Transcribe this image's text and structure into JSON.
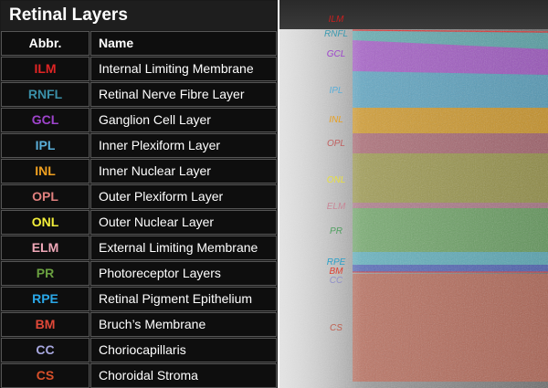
{
  "legend": {
    "title": "Retinal Layers",
    "headers": {
      "abbr": "Abbr.",
      "name": "Name"
    },
    "rows": [
      {
        "abbr": "ILM",
        "name": "Internal Limiting Membrane",
        "color": "#e02424"
      },
      {
        "abbr": "RNFL",
        "name": "Retinal Nerve Fibre Layer",
        "color": "#3a8fa8"
      },
      {
        "abbr": "GCL",
        "name": "Ganglion Cell Layer",
        "color": "#9e44cc"
      },
      {
        "abbr": "IPL",
        "name": "Inner Plexiform Layer",
        "color": "#5aaed8"
      },
      {
        "abbr": "INL",
        "name": "Inner Nuclear Layer",
        "color": "#f0a020"
      },
      {
        "abbr": "OPL",
        "name": "Outer Plexiform Layer",
        "color": "#e0807e"
      },
      {
        "abbr": "ONL",
        "name": "Outer Nuclear Layer",
        "color": "#f2ee3a"
      },
      {
        "abbr": "ELM",
        "name": "External Limiting Membrane",
        "color": "#f0a8b8"
      },
      {
        "abbr": "PR",
        "name": "Photoreceptor Layers",
        "color": "#6aa040"
      },
      {
        "abbr": "RPE",
        "name": "Retinal Pigment Epithelium",
        "color": "#2aa8e8"
      },
      {
        "abbr": "BM",
        "name": "Bruch’s Membrane",
        "color": "#e04838"
      },
      {
        "abbr": "CC",
        "name": "Choriocapillaris",
        "color": "#a8a8e0"
      },
      {
        "abbr": "CS",
        "name": "Choroidal Stroma",
        "color": "#d8502a"
      }
    ]
  },
  "oct_labels": [
    {
      "abbr": "ILM",
      "color": "#c82020"
    },
    {
      "abbr": "RNFL",
      "color": "#3a9ab0"
    },
    {
      "abbr": "GCL",
      "color": "#9e44cc"
    },
    {
      "abbr": "IPL",
      "color": "#5aaed8"
    },
    {
      "abbr": "INL",
      "color": "#e8a020"
    },
    {
      "abbr": "OPL",
      "color": "#c06060"
    },
    {
      "abbr": "ONL",
      "color": "#e8e040"
    },
    {
      "abbr": "ELM",
      "color": "#c88898"
    },
    {
      "abbr": "PR",
      "color": "#50a060"
    },
    {
      "abbr": "RPE",
      "color": "#2aa0c8"
    },
    {
      "abbr": "BM",
      "color": "#e04030"
    },
    {
      "abbr": "CC",
      "color": "#9090c8"
    },
    {
      "abbr": "CS",
      "color": "#c06050"
    }
  ]
}
